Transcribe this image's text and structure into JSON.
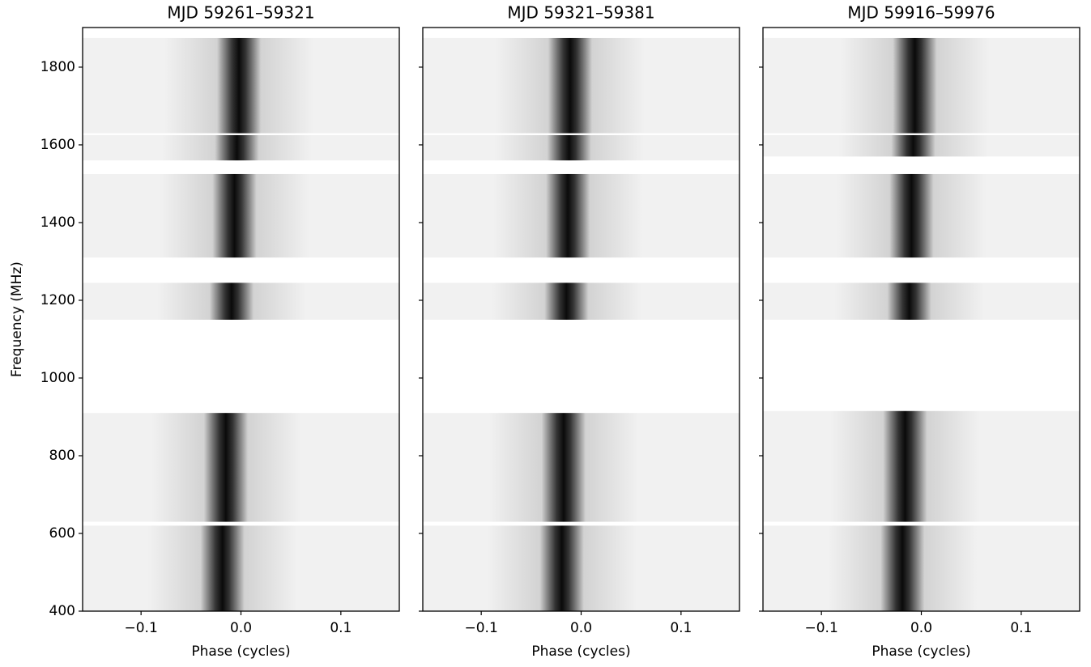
{
  "chart_data": [
    {
      "type": "image",
      "title": "MJD 59261–59321",
      "xlabel": "Phase (cycles)",
      "ylabel": "Frequency (MHz)",
      "xlim": [
        -0.1585,
        0.1585
      ],
      "ylim": [
        400,
        1902
      ],
      "xticks": [
        {
          "value": -0.1,
          "label": "−0.1"
        },
        {
          "value": 0,
          "label": "0.0"
        },
        {
          "value": 0.1,
          "label": "0.1"
        }
      ],
      "yticks": [
        400,
        600,
        800,
        1000,
        1200,
        1400,
        1600,
        1800
      ],
      "bands": [
        [
          400,
          620
        ],
        [
          630,
          910
        ],
        [
          1150,
          1245
        ],
        [
          1310,
          1525
        ],
        [
          1560,
          1625
        ],
        [
          1630,
          1875
        ]
      ],
      "pulse_phase": [
        -0.02,
        0.0
      ]
    },
    {
      "type": "image",
      "title": "MJD 59321–59381",
      "xlabel": "Phase (cycles)",
      "xlim": [
        -0.1585,
        0.1585
      ],
      "ylim": [
        400,
        1902
      ],
      "xticks": [
        {
          "value": -0.1,
          "label": "−0.1"
        },
        {
          "value": 0,
          "label": "0.0"
        },
        {
          "value": 0.1,
          "label": "0.1"
        }
      ],
      "yticks": [
        400,
        600,
        800,
        1000,
        1200,
        1400,
        1600,
        1800
      ],
      "bands": [
        [
          400,
          620
        ],
        [
          630,
          910
        ],
        [
          1150,
          1245
        ],
        [
          1310,
          1525
        ],
        [
          1560,
          1625
        ],
        [
          1630,
          1875
        ]
      ],
      "pulse_phase": [
        -0.02,
        -0.01
      ]
    },
    {
      "type": "image",
      "title": "MJD 59916–59976",
      "xlabel": "Phase (cycles)",
      "xlim": [
        -0.1585,
        0.1585
      ],
      "ylim": [
        400,
        1902
      ],
      "xticks": [
        {
          "value": -0.1,
          "label": "−0.1"
        },
        {
          "value": 0,
          "label": "0.0"
        },
        {
          "value": 0.1,
          "label": "0.1"
        }
      ],
      "yticks": [
        400,
        600,
        800,
        1000,
        1200,
        1400,
        1600,
        1800
      ],
      "bands": [
        [
          400,
          620
        ],
        [
          630,
          915
        ],
        [
          1150,
          1245
        ],
        [
          1310,
          1525
        ],
        [
          1570,
          1625
        ],
        [
          1630,
          1875
        ]
      ],
      "pulse_phase": [
        -0.02,
        -0.005
      ]
    }
  ]
}
